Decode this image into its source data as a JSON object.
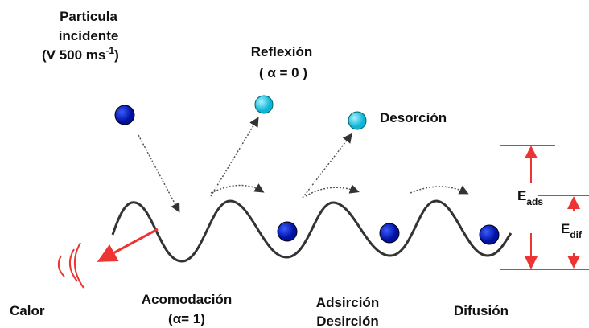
{
  "incident": {
    "line1": "Particula",
    "line2": "incidente",
    "line3": "(V  500 ms",
    "exponent": "-1",
    "close": ")"
  },
  "reflection": {
    "line1": "Reflexión",
    "line2": "( α = 0 )"
  },
  "desorption": "Desorción",
  "energy": {
    "ads_symbol": "E",
    "ads_sub": "ads",
    "dif_symbol": "E",
    "dif_sub": "dif"
  },
  "heat": "Calor",
  "accommodation": {
    "line1": "Acomodación",
    "line2": "(α= 1)"
  },
  "adsorption": {
    "line1": "Adsirción",
    "line2": "Desirción"
  },
  "diffusion": "Difusión"
}
